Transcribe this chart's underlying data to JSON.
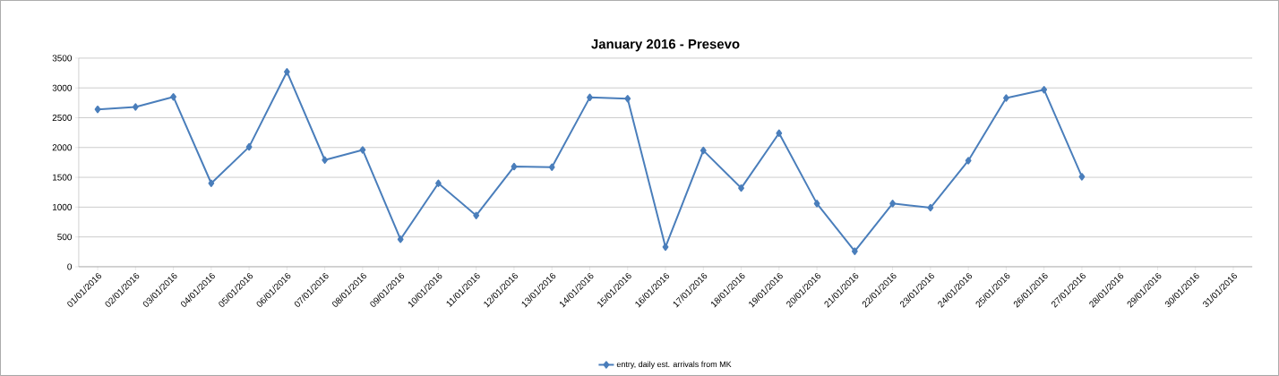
{
  "chart_data": {
    "type": "line",
    "title": "January 2016 - Presevo",
    "categories": [
      "01/01/2016",
      "02/01/2016",
      "03/01/2016",
      "04/01/2016",
      "05/01/2016",
      "06/01/2016",
      "07/01/2016",
      "08/01/2016",
      "09/01/2016",
      "10/01/2016",
      "11/01/2016",
      "12/01/2016",
      "13/01/2016",
      "14/01/2016",
      "15/01/2016",
      "16/01/2016",
      "17/01/2016",
      "18/01/2016",
      "19/01/2016",
      "20/01/2016",
      "21/01/2016",
      "22/01/2016",
      "23/01/2016",
      "24/01/2016",
      "25/01/2016",
      "26/01/2016",
      "27/01/2016",
      "28/01/2016",
      "29/01/2016",
      "30/01/2016",
      "31/01/2016"
    ],
    "series": [
      {
        "name": "entry, daily est. arrivals from MK",
        "color": "#4a7ebb",
        "values": [
          2640,
          2680,
          2850,
          1400,
          2010,
          3270,
          1790,
          1960,
          460,
          1400,
          860,
          1680,
          1670,
          2840,
          2820,
          330,
          1950,
          1320,
          2240,
          1060,
          260,
          1060,
          990,
          1780,
          2830,
          2970,
          1510,
          null,
          null,
          null,
          null
        ]
      }
    ],
    "ylim": [
      0,
      3500
    ],
    "yticks": [
      0,
      500,
      1000,
      1500,
      2000,
      2500,
      3000,
      3500
    ],
    "grid": "y",
    "legend": "bottom",
    "marker": "diamond",
    "line_style": "solid"
  }
}
